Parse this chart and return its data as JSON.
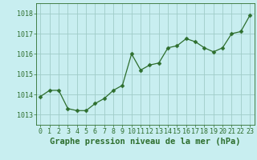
{
  "x": [
    0,
    1,
    2,
    3,
    4,
    5,
    6,
    7,
    8,
    9,
    10,
    11,
    12,
    13,
    14,
    15,
    16,
    17,
    18,
    19,
    20,
    21,
    22,
    23
  ],
  "y": [
    1013.9,
    1014.2,
    1014.2,
    1013.3,
    1013.2,
    1013.2,
    1013.55,
    1013.8,
    1014.2,
    1014.45,
    1016.0,
    1015.2,
    1015.45,
    1015.55,
    1016.3,
    1016.4,
    1016.75,
    1016.6,
    1016.3,
    1016.1,
    1016.3,
    1017.0,
    1017.1,
    1017.9
  ],
  "line_color": "#2d6e2d",
  "marker": "D",
  "marker_size": 2.5,
  "bg_color": "#c8eef0",
  "grid_color": "#a0ccc8",
  "title": "Graphe pression niveau de la mer (hPa)",
  "ylim": [
    1012.5,
    1018.5
  ],
  "yticks": [
    1013,
    1014,
    1015,
    1016,
    1017,
    1018
  ],
  "xlim": [
    -0.5,
    23.5
  ],
  "xticks": [
    0,
    1,
    2,
    3,
    4,
    5,
    6,
    7,
    8,
    9,
    10,
    11,
    12,
    13,
    14,
    15,
    16,
    17,
    18,
    19,
    20,
    21,
    22,
    23
  ],
  "title_fontsize": 7.5,
  "tick_fontsize": 6.0
}
